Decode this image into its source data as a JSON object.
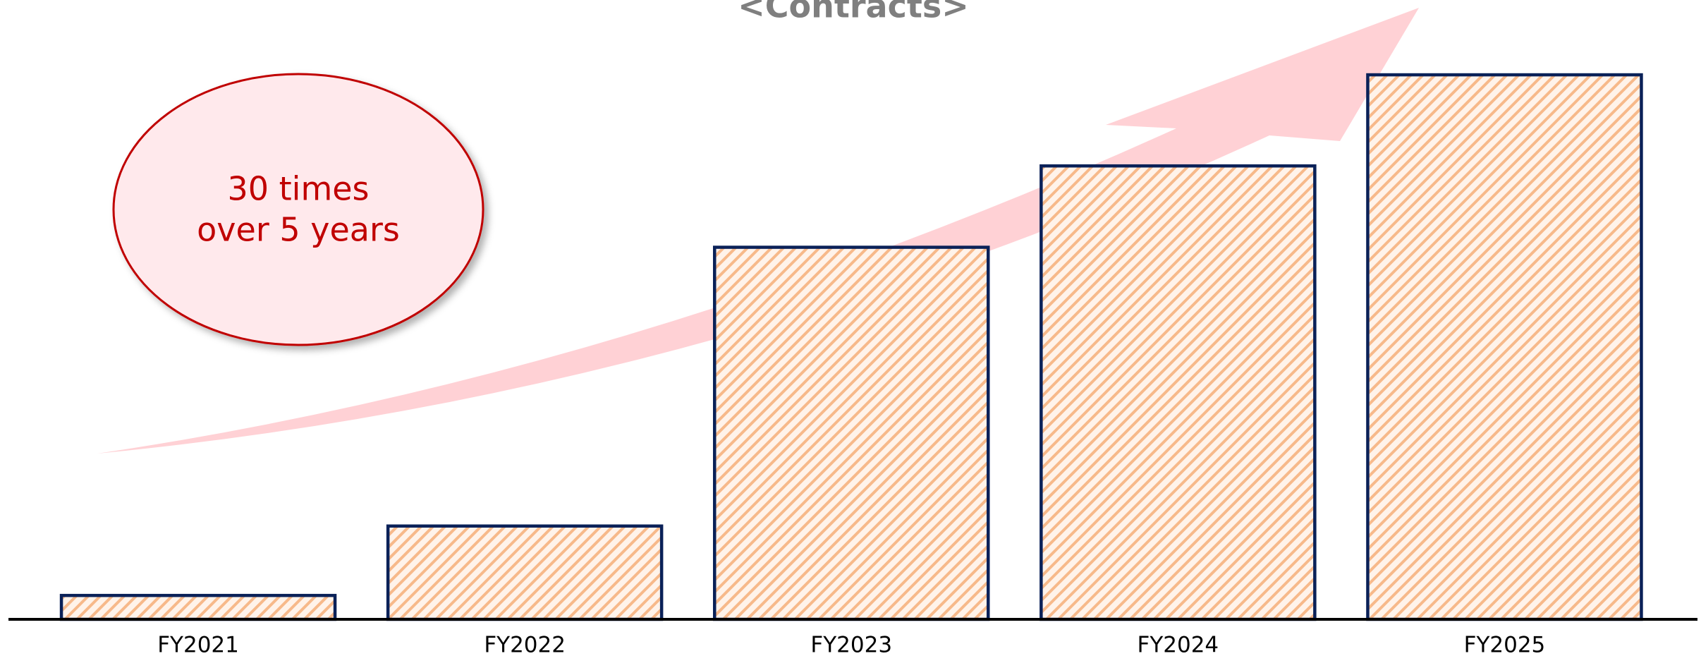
{
  "chart_data": {
    "type": "bar",
    "title": "<Contracts>",
    "categories": [
      "FY2021",
      "FY2022",
      "FY2023",
      "FY2024",
      "FY2025"
    ],
    "values": [
      22,
      86,
      343,
      418,
      502
    ],
    "color": "#f7b98a",
    "ylim": [
      0,
      530
    ],
    "annotation": [
      "30 times",
      "over 5 years"
    ]
  }
}
